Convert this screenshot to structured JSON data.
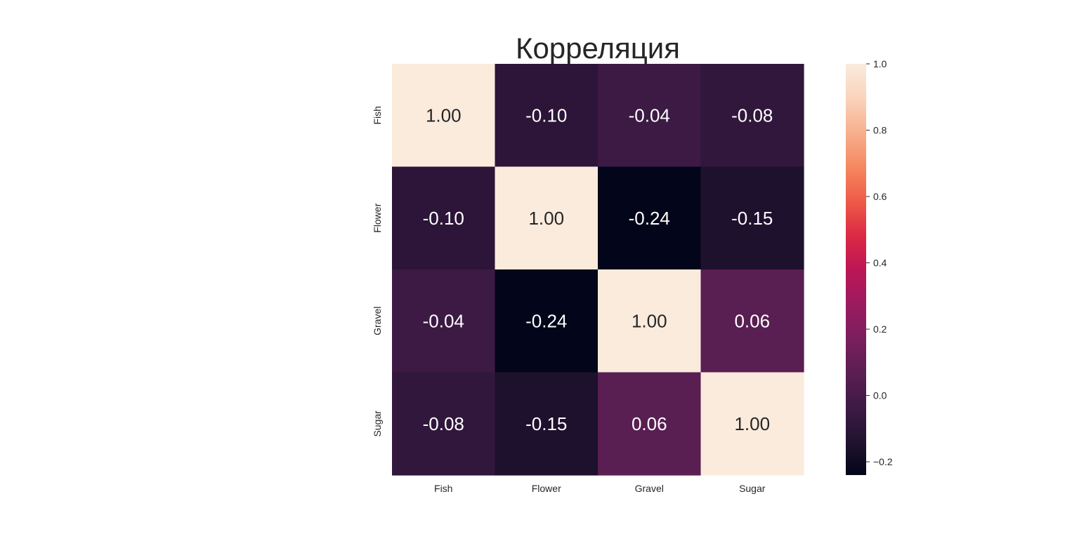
{
  "chart_data": {
    "type": "heatmap",
    "title": "Корреляция",
    "x_categories": [
      "Fish",
      "Flower",
      "Gravel",
      "Sugar"
    ],
    "y_categories": [
      "Fish",
      "Flower",
      "Gravel",
      "Sugar"
    ],
    "values": [
      [
        1.0,
        -0.1,
        -0.04,
        -0.08
      ],
      [
        -0.1,
        1.0,
        -0.24,
        -0.15
      ],
      [
        -0.04,
        -0.24,
        1.0,
        0.06
      ],
      [
        -0.08,
        -0.15,
        0.06,
        1.0
      ]
    ],
    "annotation_labels": [
      [
        "1.00",
        "-0.10",
        "-0.04",
        "-0.08"
      ],
      [
        "-0.10",
        "1.00",
        "-0.24",
        "-0.15"
      ],
      [
        "-0.04",
        "-0.24",
        "1.00",
        "0.06"
      ],
      [
        "-0.08",
        "-0.15",
        "0.06",
        "1.00"
      ]
    ],
    "colorbar": {
      "range": [
        -0.24,
        1.0
      ],
      "ticks": [
        -0.2,
        0.0,
        0.2,
        0.4,
        0.6,
        0.8,
        1.0
      ],
      "tick_labels": [
        "−0.2",
        "0.0",
        "0.2",
        "0.4",
        "0.6",
        "0.8",
        "1.0"
      ],
      "colormap": "rocket",
      "color_stops": [
        "#03051a",
        "#221331",
        "#3e1a45",
        "#5c1e53",
        "#7a1f5e",
        "#9c1b5f",
        "#bd1655",
        "#dc2a45",
        "#ee5b48",
        "#f58860",
        "#f7b08e",
        "#fad3bb",
        "#faebdd"
      ]
    },
    "annotation_colors": {
      "dark_cell_text": "#ffffff",
      "light_cell_text": "#262626"
    },
    "grid": false
  }
}
